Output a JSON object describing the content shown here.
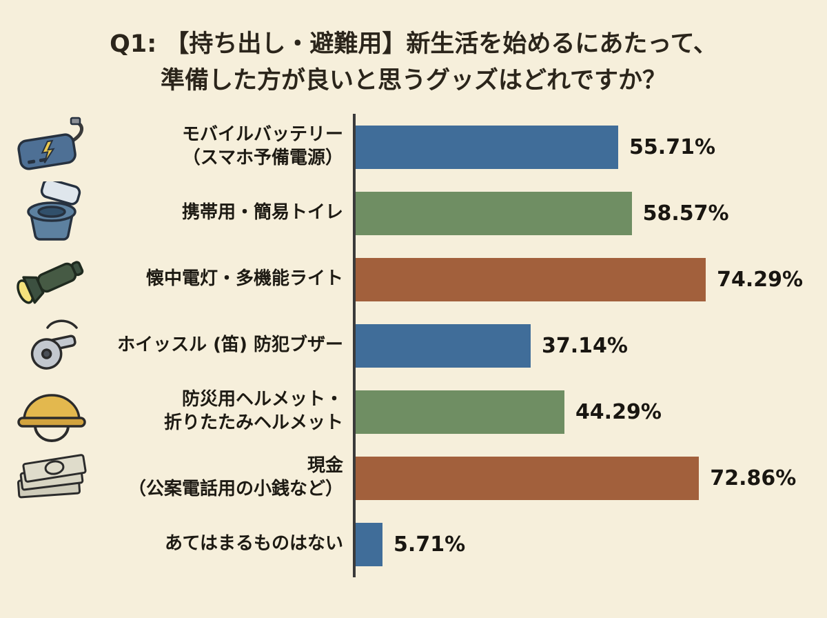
{
  "title": {
    "line1": "Q1: 【持ち出し・避難用】新生活を始めるにあたって、",
    "line2": "準備した方が良いと思うグッズはどれですか？"
  },
  "colors": {
    "background": "#f6efdb",
    "blue": "#406d99",
    "green": "#6f8e63",
    "brown": "#a2603c",
    "axis": "#3a3a3a",
    "text": "#1d1a13"
  },
  "chart_data": {
    "type": "bar",
    "orientation": "horizontal",
    "title": "Q1: 【持ち出し・避難用】新生活を始めるにあたって、準備した方が良いと思うグッズはどれですか？",
    "categories": [
      "モバイルバッテリー（スマホ予備電源）",
      "携帯用・簡易トイレ",
      "懐中電灯・多機能ライト",
      "ホイッスル (笛) 防犯ブザー",
      "防災用ヘルメット・折りたたみヘルメット",
      "現金（公案電話用の小銭など）",
      "あてはまるものはない"
    ],
    "values": [
      55.71,
      58.57,
      74.29,
      37.14,
      44.29,
      72.86,
      5.71
    ],
    "value_labels": [
      "55.71%",
      "58.57%",
      "74.29%",
      "37.14%",
      "44.29%",
      "72.86%",
      "5.71%"
    ],
    "bar_colors": [
      "#406d99",
      "#6f8e63",
      "#a2603c",
      "#406d99",
      "#6f8e63",
      "#a2603c",
      "#406d99"
    ],
    "xlim": [
      0,
      100
    ],
    "grid": false,
    "legend": false
  },
  "rows": [
    {
      "label_line1": "モバイルバッテリー",
      "label_line2": "（スマホ予備電源）",
      "value": 55.71,
      "display": "55.71%",
      "color": "#406d99",
      "icon": "power-bank-icon"
    },
    {
      "label_line1": "携帯用・簡易トイレ",
      "label_line2": "",
      "value": 58.57,
      "display": "58.57%",
      "color": "#6f8e63",
      "icon": "portable-toilet-icon"
    },
    {
      "label_line1": "懐中電灯・多機能ライト",
      "label_line2": "",
      "value": 74.29,
      "display": "74.29%",
      "color": "#a2603c",
      "icon": "flashlight-icon"
    },
    {
      "label_line1": "ホイッスル (笛) 防犯ブザー",
      "label_line2": "",
      "value": 37.14,
      "display": "37.14%",
      "color": "#406d99",
      "icon": "whistle-icon"
    },
    {
      "label_line1": "防災用ヘルメット・",
      "label_line2": "折りたたみヘルメット",
      "value": 44.29,
      "display": "44.29%",
      "color": "#6f8e63",
      "icon": "helmet-icon"
    },
    {
      "label_line1": "現金",
      "label_line2": "（公案電話用の小銭など）",
      "value": 72.86,
      "display": "72.86%",
      "color": "#a2603c",
      "icon": "cash-icon"
    },
    {
      "label_line1": "あてはまるものはない",
      "label_line2": "",
      "value": 5.71,
      "display": "5.71%",
      "color": "#406d99",
      "icon": ""
    }
  ]
}
